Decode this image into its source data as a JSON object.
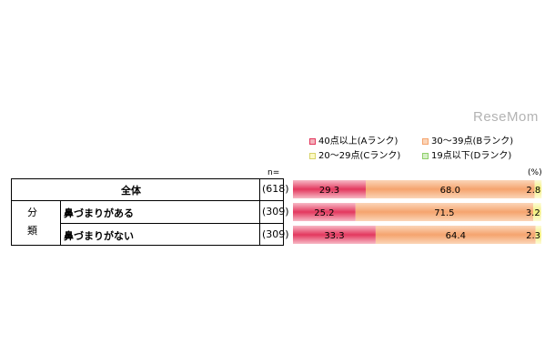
{
  "watermark": "ReseMom",
  "chart_data": {
    "type": "bar",
    "orientation": "horizontal",
    "stacked": true,
    "percent": true,
    "n_label": "n=",
    "unit_label": "(%)",
    "legend": [
      {
        "label": "40点以上(Aランク)",
        "color": "#e3385e"
      },
      {
        "label": "30～39点(Bランク)",
        "color": "#f5a46e"
      },
      {
        "label": "20～29点(Cランク)",
        "color": "#f3ef7e"
      },
      {
        "label": "19点以下(Dランク)",
        "color": "#8fcf6a"
      }
    ],
    "group_label": "分類",
    "rows": [
      {
        "label": "全体",
        "n": "(618)",
        "values": [
          29.3,
          68.0,
          2.8,
          0
        ]
      },
      {
        "label": "鼻づまりがある",
        "n": "(309)",
        "values": [
          25.2,
          71.5,
          3.2,
          0
        ]
      },
      {
        "label": "鼻づまりがない",
        "n": "(309)",
        "values": [
          33.3,
          64.4,
          2.3,
          0
        ]
      }
    ],
    "value_labels": [
      [
        "29.3",
        "68.0",
        "2.8"
      ],
      [
        "25.2",
        "71.5",
        "3.2"
      ],
      [
        "33.3",
        "64.4",
        "2.3"
      ]
    ],
    "xlim": [
      0,
      100
    ]
  }
}
